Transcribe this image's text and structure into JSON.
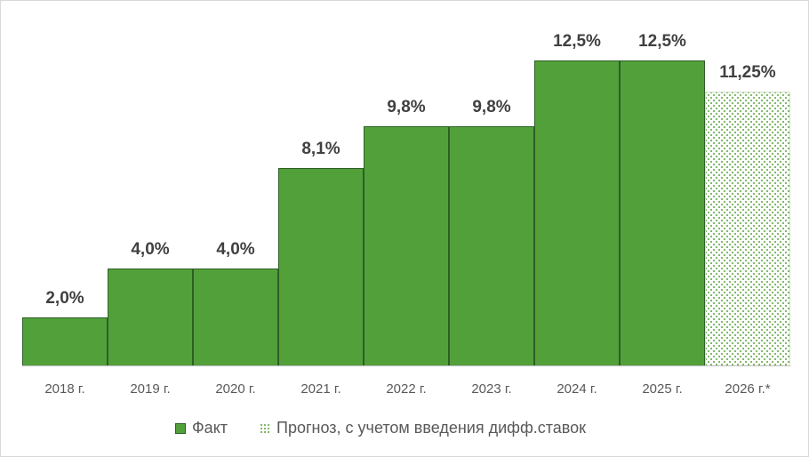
{
  "chart_data": {
    "type": "bar",
    "title": "",
    "xlabel": "",
    "ylabel": "",
    "ylim": [
      0,
      13.8
    ],
    "grid": false,
    "legend_position": "bottom",
    "categories": [
      "2018 г.",
      "2019 г.",
      "2020 г.",
      "2021 г.",
      "2022 г.",
      "2023 г.",
      "2024 г.",
      "2025 г.",
      "2026 г.*"
    ],
    "series": [
      {
        "name": "Факт",
        "color": "#52a03a",
        "values": [
          2.0,
          4.0,
          4.0,
          8.1,
          9.8,
          9.8,
          12.5,
          12.5,
          null
        ]
      },
      {
        "name": "Прогноз, с учетом введения дифф.ставок",
        "color": "#6fae56",
        "pattern": "dotted",
        "values": [
          null,
          null,
          null,
          null,
          null,
          null,
          null,
          null,
          11.25
        ]
      }
    ],
    "data_labels": [
      "2,0%",
      "4,0%",
      "4,0%",
      "8,1%",
      "9,8%",
      "9,8%",
      "12,5%",
      "12,5%",
      "11,25%"
    ]
  },
  "legend": {
    "items": [
      {
        "label": "Факт"
      },
      {
        "label": "Прогноз, с учетом введения дифф.ставок"
      }
    ]
  }
}
